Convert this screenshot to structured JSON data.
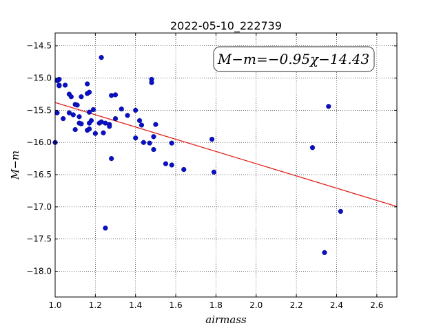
{
  "chart_data": {
    "type": "scatter",
    "title": "2022-05-10_222739",
    "xlabel": "airmass",
    "ylabel": "M−m",
    "xlim": [
      1.0,
      2.7
    ],
    "ylim": [
      -18.4,
      -14.3
    ],
    "y_inverted": true,
    "grid": true,
    "x_ticks": [
      1.0,
      1.2,
      1.4,
      1.6,
      1.8,
      2.0,
      2.2,
      2.4,
      2.6
    ],
    "x_tick_labels": [
      "1.0",
      "1.2",
      "1.4",
      "1.6",
      "1.8",
      "2.0",
      "2.2",
      "2.4",
      "2.6"
    ],
    "y_ticks": [
      -14.5,
      -15.0,
      -15.5,
      -16.0,
      -16.5,
      -17.0,
      -17.5,
      -18.0
    ],
    "y_tick_labels": [
      "−14.5",
      "−15.0",
      "−15.5",
      "−16.0",
      "−16.5",
      "−17.0",
      "−17.5",
      "−18.0"
    ],
    "annotation": "M−m=−0.95χ−14.43",
    "fit": {
      "slope": -0.95,
      "intercept": -14.43,
      "color": "#e0201a"
    },
    "point_color": "#0a10c8",
    "points": [
      {
        "x": 1.0,
        "y": -16.0
      },
      {
        "x": 1.01,
        "y": -15.54
      },
      {
        "x": 1.01,
        "y": -15.04
      },
      {
        "x": 1.02,
        "y": -15.02
      },
      {
        "x": 1.02,
        "y": -15.11
      },
      {
        "x": 1.02,
        "y": -15.12
      },
      {
        "x": 1.04,
        "y": -15.63
      },
      {
        "x": 1.05,
        "y": -15.11
      },
      {
        "x": 1.07,
        "y": -15.54
      },
      {
        "x": 1.07,
        "y": -15.25
      },
      {
        "x": 1.08,
        "y": -15.29
      },
      {
        "x": 1.09,
        "y": -15.57
      },
      {
        "x": 1.1,
        "y": -15.41
      },
      {
        "x": 1.1,
        "y": -15.8
      },
      {
        "x": 1.11,
        "y": -15.42
      },
      {
        "x": 1.12,
        "y": -15.6
      },
      {
        "x": 1.12,
        "y": -15.7
      },
      {
        "x": 1.13,
        "y": -15.71
      },
      {
        "x": 1.13,
        "y": -15.29
      },
      {
        "x": 1.16,
        "y": -15.09
      },
      {
        "x": 1.16,
        "y": -15.24
      },
      {
        "x": 1.16,
        "y": -15.81
      },
      {
        "x": 1.17,
        "y": -15.22
      },
      {
        "x": 1.17,
        "y": -15.53
      },
      {
        "x": 1.17,
        "y": -15.79
      },
      {
        "x": 1.17,
        "y": -15.7
      },
      {
        "x": 1.18,
        "y": -15.66
      },
      {
        "x": 1.19,
        "y": -15.49
      },
      {
        "x": 1.2,
        "y": -15.86
      },
      {
        "x": 1.22,
        "y": -15.7
      },
      {
        "x": 1.23,
        "y": -15.68
      },
      {
        "x": 1.23,
        "y": -14.68
      },
      {
        "x": 1.24,
        "y": -15.85
      },
      {
        "x": 1.25,
        "y": -15.7
      },
      {
        "x": 1.25,
        "y": -17.33
      },
      {
        "x": 1.27,
        "y": -15.72
      },
      {
        "x": 1.27,
        "y": -15.75
      },
      {
        "x": 1.28,
        "y": -15.27
      },
      {
        "x": 1.28,
        "y": -16.25
      },
      {
        "x": 1.3,
        "y": -15.26
      },
      {
        "x": 1.3,
        "y": -15.63
      },
      {
        "x": 1.33,
        "y": -15.48
      },
      {
        "x": 1.36,
        "y": -15.58
      },
      {
        "x": 1.4,
        "y": -15.5
      },
      {
        "x": 1.4,
        "y": -15.93
      },
      {
        "x": 1.42,
        "y": -15.66
      },
      {
        "x": 1.43,
        "y": -15.73
      },
      {
        "x": 1.44,
        "y": -16.0
      },
      {
        "x": 1.47,
        "y": -16.01
      },
      {
        "x": 1.48,
        "y": -15.02
      },
      {
        "x": 1.48,
        "y": -15.07
      },
      {
        "x": 1.49,
        "y": -15.91
      },
      {
        "x": 1.49,
        "y": -16.11
      },
      {
        "x": 1.5,
        "y": -15.72
      },
      {
        "x": 1.55,
        "y": -16.33
      },
      {
        "x": 1.58,
        "y": -16.01
      },
      {
        "x": 1.58,
        "y": -16.35
      },
      {
        "x": 1.64,
        "y": -16.42
      },
      {
        "x": 1.78,
        "y": -15.95
      },
      {
        "x": 1.79,
        "y": -16.46
      },
      {
        "x": 2.28,
        "y": -16.08
      },
      {
        "x": 2.34,
        "y": -17.71
      },
      {
        "x": 2.36,
        "y": -15.44
      },
      {
        "x": 2.42,
        "y": -17.07
      }
    ]
  }
}
